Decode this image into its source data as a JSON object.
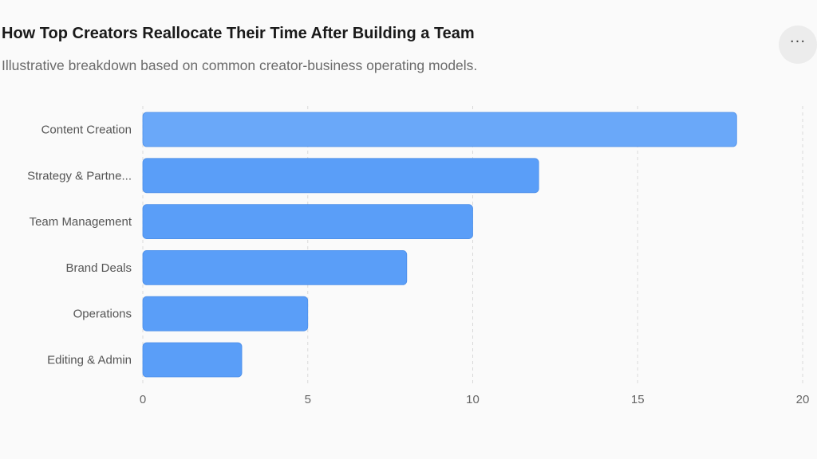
{
  "header": {
    "title": "How Top Creators Reallocate Their Time After Building a Team",
    "subtitle": "Illustrative breakdown based on common creator-business operating models.",
    "menu_icon": "more-horizontal-icon",
    "menu_glyph": "···"
  },
  "colors": {
    "bar": "#5a9ef8",
    "bar_highlight": "#6aa8f9",
    "bar_stroke": "#4d8fe8",
    "grid": "#d9d9d9"
  },
  "chart_data": {
    "type": "bar",
    "orientation": "horizontal",
    "title": "How Top Creators Reallocate Their Time After Building a Team",
    "subtitle": "Illustrative breakdown based on common creator-business operating models.",
    "xlabel": "",
    "ylabel": "",
    "categories": [
      "Content Creation",
      "Strategy & Partne...",
      "Team Management",
      "Brand Deals",
      "Operations",
      "Editing & Admin"
    ],
    "values": [
      18,
      12,
      10,
      8,
      5,
      3
    ],
    "xlim": [
      0,
      20
    ],
    "xticks": [
      0,
      5,
      10,
      15,
      20
    ],
    "grid": "vertical dashed",
    "legend": "none"
  }
}
